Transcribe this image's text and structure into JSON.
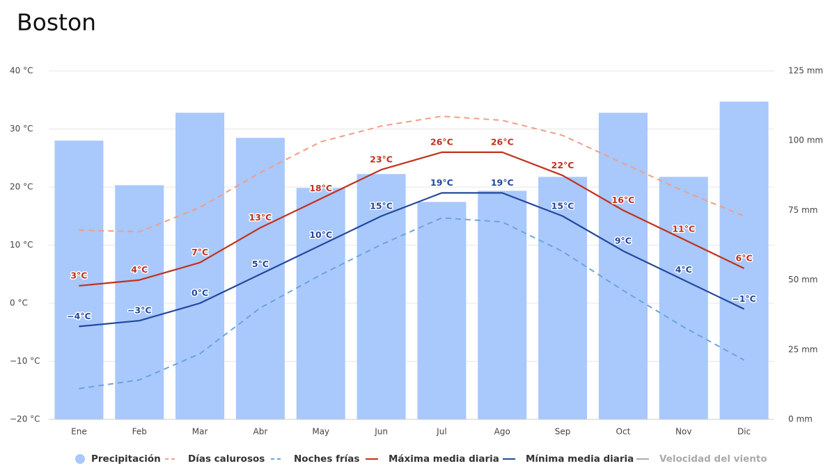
{
  "chart_data": {
    "type": "combo",
    "title": "Boston",
    "categories": [
      "Ene",
      "Feb",
      "Mar",
      "Abr",
      "May",
      "Jun",
      "Jul",
      "Ago",
      "Sep",
      "Oct",
      "Nov",
      "Dic"
    ],
    "ylim": [
      -20,
      40
    ],
    "yticks": [
      {
        "value": -20,
        "label": "−20 °C"
      },
      {
        "value": -10,
        "label": "−10 °C"
      },
      {
        "value": 0,
        "label": "0 °C"
      },
      {
        "value": 10,
        "label": "10 °C"
      },
      {
        "value": 20,
        "label": "20 °C"
      },
      {
        "value": 30,
        "label": "30 °C"
      },
      {
        "value": 40,
        "label": "40 °C"
      }
    ],
    "y2lim": [
      0,
      125
    ],
    "y2ticks": [
      {
        "value": 0,
        "label": "0 mm"
      },
      {
        "value": 25,
        "label": "25 mm"
      },
      {
        "value": 50,
        "label": "50 mm"
      },
      {
        "value": 75,
        "label": "75 mm"
      },
      {
        "value": 100,
        "label": "100 mm"
      },
      {
        "value": 125,
        "label": "125 mm"
      }
    ],
    "grid": true,
    "series": [
      {
        "name": "Precipitación",
        "type": "bar",
        "axis": "y2",
        "color": "#a9c8fb",
        "values": [
          100,
          84,
          110,
          101,
          83,
          88,
          78,
          82,
          87,
          110,
          87,
          114
        ]
      },
      {
        "name": "Días calurosos",
        "type": "line",
        "dashed": true,
        "color": "#f19d85",
        "values": [
          12.6,
          12.3,
          16.5,
          22.5,
          27.8,
          30.5,
          32.2,
          31.5,
          28.9,
          24.1,
          19.3,
          15.0
        ]
      },
      {
        "name": "Noches frías",
        "type": "line",
        "dashed": true,
        "color": "#6ba5dd",
        "values": [
          -14.7,
          -13.2,
          -8.7,
          -0.8,
          4.9,
          10.1,
          14.7,
          14.0,
          8.9,
          2.2,
          -4.1,
          -9.8
        ]
      },
      {
        "name": "Máxima media diaria",
        "type": "line",
        "color": "#c0311d",
        "values": [
          3,
          4,
          7,
          13,
          18,
          23,
          26,
          26,
          22,
          16,
          11,
          6
        ],
        "value_labels": [
          "3°C",
          "4°C",
          "7°C",
          "13°C",
          "18°C",
          "23°C",
          "26°C",
          "26°C",
          "22°C",
          "16°C",
          "11°C",
          "6°C"
        ]
      },
      {
        "name": "Mínima media diaria",
        "type": "line",
        "color": "#22489e",
        "values": [
          -4,
          -3,
          0,
          5,
          10,
          15,
          19,
          19,
          15,
          9,
          4,
          -1
        ],
        "value_labels": [
          "−4°C",
          "−3°C",
          "0°C",
          "5°C",
          "10°C",
          "15°C",
          "19°C",
          "19°C",
          "15°C",
          "9°C",
          "4°C",
          "−1°C"
        ]
      },
      {
        "name": "Velocidad del viento",
        "type": "line",
        "hidden": true,
        "color": "#aaaaaa",
        "values": [
          null,
          null,
          null,
          null,
          null,
          null,
          null,
          null,
          null,
          null,
          null,
          null
        ]
      }
    ]
  }
}
